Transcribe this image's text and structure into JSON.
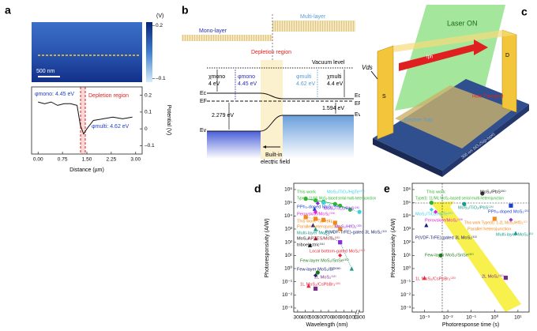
{
  "panels": {
    "a": {
      "letter": "a",
      "colorbar_unit": "(V)",
      "colorbar_lim": [
        -0.12,
        0.22
      ],
      "colorbar_ticks": [
        0.2,
        {
          "value": -0.1,
          "label": "–0.1"
        }
      ],
      "scale_bar": "500 nm",
      "phi_mono": "φmono: 4.45 eV",
      "phi_multi": "φmulti: 4.62 eV",
      "depletion": "Depletion region",
      "xlabel": "Distance (µm)",
      "ylabel": "Potential (V)",
      "xlim": [
        -0.2,
        3.2
      ],
      "xticks": [
        {
          "value": 0,
          "label": "0.00"
        },
        {
          "value": 0.75,
          "label": "0.75"
        },
        {
          "value": 1.5,
          "label": "1.50"
        },
        {
          "value": 2.25,
          "label": "2.25"
        },
        {
          "value": 3,
          "label": "3.00"
        }
      ],
      "ylim": [
        -0.15,
        0.25
      ],
      "yticks": [
        0.2,
        0.1,
        0,
        {
          "value": -0.1,
          "label": "–0.1"
        }
      ],
      "profile": {
        "color": "#111111",
        "x": [
          0,
          0.2,
          0.4,
          0.6,
          0.8,
          1.0,
          1.2,
          1.3,
          1.4,
          1.5,
          1.7,
          2.0,
          2.3,
          2.6,
          2.9
        ],
        "values": [
          0.16,
          0.15,
          0.16,
          0.14,
          0.15,
          0.15,
          0.14,
          0.02,
          -0.03,
          0.0,
          0.05,
          0.06,
          0.07,
          0.06,
          0.07
        ]
      }
    },
    "b": {
      "letter": "b",
      "multi": "Multi-layer",
      "mono": "Mono-layer",
      "depletion": "Depletion region",
      "vacuum": "Vacuum level",
      "chi_mono_sym": "χmono",
      "chi_mono": "4 eV",
      "phi_mono_sym": "φmono",
      "phi_mono": "4.45 eV",
      "phi_multi_sym": "φmulti",
      "phi_multi": "4.62 eV",
      "chi_multi_sym": "χmulti",
      "chi_multi": "4.4 eV",
      "ec_left": "Ec",
      "ef_left": "EF",
      "ev_left": "Ev",
      "ec_right": "Ec",
      "ef_right": "EF",
      "ev_right": "Ev",
      "gap_mono": "2.279 eV",
      "gap_multi": "1.594 eV",
      "builtin1": "Built-in",
      "builtin2": "electric field"
    },
    "c": {
      "letter": "c",
      "laser": "Laser ON",
      "vds": "Vds",
      "source": "S",
      "drain": "D",
      "iph": "Iph",
      "substrate": "300 nm SiO₂/Si(p-type)",
      "hole": "Hole Transport",
      "electron": "Electron Trap"
    },
    "d": {
      "letter": "d",
      "xlabel": "Wavelength (nm)",
      "ylabel": "Photoresponsivity (A/W)",
      "xlim": [
        250,
        1350
      ],
      "axis_break": [
        1050,
        1250
      ],
      "xticks": [
        300,
        400,
        500,
        600,
        700,
        800,
        900,
        1000,
        1300
      ],
      "log_y": true,
      "ylim": [
        0.0005,
        3000000
      ],
      "yticks": [
        {
          "value": 1000000,
          "label": "10⁶"
        },
        {
          "value": 100000,
          "label": "10⁵"
        },
        {
          "value": 10000,
          "label": "10⁴"
        },
        {
          "value": 1000,
          "label": "10³"
        },
        {
          "value": 100,
          "label": "10²"
        },
        {
          "value": 10,
          "label": "10¹"
        },
        {
          "value": 1,
          "label": "10⁰"
        },
        {
          "value": 0.1,
          "label": "10⁻¹"
        },
        {
          "value": 0.01,
          "label": "10⁻²"
        },
        {
          "value": 0.001,
          "label": "10⁻³"
        }
      ],
      "series": [
        {
          "color": "#2fb52f",
          "shape": "circle",
          "line": "solid",
          "x": [
            405,
            532,
            635,
            785,
            850,
            980
          ],
          "values": [
            200000,
            150000,
            120000,
            80000,
            60000,
            30000
          ]
        },
        {
          "color": "#3ad0e8",
          "shape": "circle",
          "line": "dotted",
          "x": [
            635,
            1300
          ],
          "values": [
            100000,
            20000
          ]
        },
        {
          "color": "#1f3fd0",
          "shape": "triangle",
          "x": [
            520
          ],
          "values": [
            35000
          ]
        },
        {
          "color": "#8a2be2",
          "shape": "diamond",
          "x": [
            560
          ],
          "values": [
            90000
          ]
        },
        {
          "color": "#e020d0",
          "shape": "diamond",
          "x": [
            532
          ],
          "values": [
            20000
          ]
        },
        {
          "color": "#f08a1c",
          "shape": "square",
          "line": "dotted",
          "x": [
            405,
            532,
            635,
            785,
            850
          ],
          "values": [
            8000,
            6000,
            5000,
            3000,
            1000
          ]
        },
        {
          "color": "#1a9a8a",
          "shape": "triangle",
          "line": "dotted",
          "x": [
            532,
            850,
            1000
          ],
          "values": [
            1000,
            100,
            1
          ]
        },
        {
          "color": "#16206e",
          "shape": "triangle",
          "x": [
            500
          ],
          "values": [
            2000
          ]
        },
        {
          "color": "#111111",
          "shape": "triangle",
          "x": [
            460
          ],
          "values": [
            60
          ]
        },
        {
          "color": "#e8283c",
          "shape": "diamond",
          "x": [
            850
          ],
          "values": [
            10
          ]
        },
        {
          "color": "#1f7a1f",
          "shape": "circle",
          "x": [
            560
          ],
          "values": [
            0.5
          ]
        },
        {
          "color": "#16206e",
          "shape": "diamond",
          "x": [
            532
          ],
          "values": [
            0.3
          ]
        },
        {
          "color": "#7a2a8a",
          "shape": "square",
          "x": [
            532
          ],
          "values": [
            0.03
          ]
        },
        {
          "color": "#e8283c",
          "shape": "triangle",
          "x": [
            442
          ],
          "values": [
            0.05
          ]
        },
        {
          "color": "#9a1a2a",
          "shape": "triangle",
          "x": [
            532
          ],
          "values": [
            200
          ]
        },
        {
          "color": "#8a2be2",
          "shape": "square",
          "x": [
            850
          ],
          "values": [
            100
          ]
        }
      ],
      "annotations": [
        {
          "text": "This work",
          "color": "#2fb52f"
        },
        {
          "text": "Type(I): 1L/ML MoS₂-based serial multi-heterojunction",
          "color": "#2fb52f"
        },
        {
          "text": "MoS₂/TiO₂/HgTe⁽²⁵⁾",
          "color": "#3ad0e8"
        },
        {
          "text": "PPh₃-doped MoS₂⁽²¹⁾",
          "color": "#1f3fd0"
        },
        {
          "text": "MoS₂/TiO₂/PbS⁽²⁶⁾",
          "color": "#8a2be2"
        },
        {
          "text": "Perovskite/MoS₂⁽¹⁸⁾",
          "color": "#e020d0"
        },
        {
          "text": "This work Type(II):",
          "color": "#f08a1c"
        },
        {
          "text": "Parallel heterojunction",
          "color": "#f08a1c"
        },
        {
          "text": "Multi-layer MoS₂⁽²¹⁾",
          "color": "#1a9a8a"
        },
        {
          "text": "P(VDF-TrFE)-gated 3L MoS₂⁽¹³⁾",
          "color": "#16206e"
        },
        {
          "text": "MoS₂/HfO₂⁽³⁰⁾",
          "color": "#8a2be2"
        },
        {
          "text": "APTES/MoS₂⁽¹⁵⁾",
          "color": "#9a1a2a"
        },
        {
          "text": "MoS₂/",
          "color": "#111111"
        },
        {
          "text": "triboelectric⁽¹¹⁾",
          "color": "#111111"
        },
        {
          "text": "Local bottom-gated MoS₂⁽¹⁹⁾",
          "color": "#e8283c"
        },
        {
          "text": "Few-layer MoS₂/SnSe⁽³⁰⁾",
          "color": "#1f7a1f"
        },
        {
          "text": "Few-layer MoS₂/BP⁽³⁸⁾",
          "color": "#16206e"
        },
        {
          "text": "2L MoS₂⁽¹²⁾",
          "color": "#7a2a8a"
        },
        {
          "text": "1L MoS₂/CsPbBr₃⁽²³⁾",
          "color": "#e8283c"
        }
      ]
    },
    "e": {
      "letter": "e",
      "xlabel": "Photoresponse time (s)",
      "ylabel": "Photoresponsivity (A/W)",
      "log_x": true,
      "xlim": [
        0.0003,
        30
      ],
      "xticks": [
        {
          "value": 0.001,
          "label": "10⁻³"
        },
        {
          "value": 0.01,
          "label": "10⁻²"
        },
        {
          "value": 0.1,
          "label": "10⁻¹"
        },
        {
          "value": 1,
          "label": "10⁰"
        },
        {
          "value": 10,
          "label": "10¹"
        }
      ],
      "log_y": true,
      "ylim": [
        0.0005,
        3000000
      ],
      "yticks": [
        {
          "value": 1000000,
          "label": "10⁶"
        },
        {
          "value": 100000,
          "label": "10⁵"
        },
        {
          "value": 10000,
          "label": "10⁴"
        },
        {
          "value": 1000,
          "label": "10³"
        },
        {
          "value": 100,
          "label": "10²"
        },
        {
          "value": 10,
          "label": "10¹"
        },
        {
          "value": 1,
          "label": "10⁰"
        },
        {
          "value": 0.1,
          "label": "10⁻¹"
        },
        {
          "value": 0.01,
          "label": "10⁻²"
        },
        {
          "value": 0.001,
          "label": "10⁻³"
        }
      ],
      "series": [
        {
          "color": "#2fb52f",
          "shape": "circle",
          "x": [
            0.002
          ],
          "values": [
            100000
          ]
        },
        {
          "color": "#333333",
          "shape": "circle",
          "x": [
            0.3
          ],
          "values": [
            500000
          ]
        },
        {
          "color": "#1a9a8a",
          "shape": "circle",
          "x": [
            0.05
          ],
          "values": [
            80000
          ]
        },
        {
          "color": "#1f3fd0",
          "shape": "square",
          "x": [
            5
          ],
          "values": [
            60000
          ]
        },
        {
          "color": "#3ad0e8",
          "shape": "diamond",
          "x": [
            0.002
          ],
          "values": [
            30000
          ]
        },
        {
          "color": "#e020d0",
          "shape": "diamond",
          "x": [
            0.003
          ],
          "values": [
            20000
          ]
        },
        {
          "color": "#f08a1c",
          "shape": "square",
          "x": [
            1
          ],
          "values": [
            6000
          ]
        },
        {
          "color": "#8a2be2",
          "shape": "diamond",
          "x": [
            5
          ],
          "values": [
            5000
          ]
        },
        {
          "color": "#16206e",
          "shape": "triangle",
          "x": [
            0.0012
          ],
          "values": [
            2000
          ]
        },
        {
          "color": "#1a9a8a",
          "shape": "triangle",
          "x": [
            8
          ],
          "values": [
            500
          ]
        },
        {
          "color": "#1f7a1f",
          "shape": "circle",
          "x": [
            0.005
          ],
          "values": [
            10
          ]
        },
        {
          "color": "#e8283c",
          "shape": "triangle",
          "x": [
            0.001
          ],
          "values": [
            0.2
          ]
        },
        {
          "color": "#7a2a8a",
          "shape": "square",
          "x": [
            3
          ],
          "values": [
            0.2
          ]
        }
      ],
      "annotations": [
        {
          "text": "This work",
          "color": "#2fb52f"
        },
        {
          "text": "Type(I): 1L/ML MoS₂-based serial multi-heterojunction",
          "color": "#2fb52f"
        },
        {
          "text": "MoS₂/PbS⁽²⁶⁾",
          "color": "#111111"
        },
        {
          "text": "MoS₂/TiO₂/PbS⁽²⁶⁾",
          "color": "#1a9a8a"
        },
        {
          "text": "PPh₃-doped MoS₂⁽²¹⁾",
          "color": "#1f3fd0"
        },
        {
          "text": "MoS₂/TiO₂/HgTe⁽²⁵⁾",
          "color": "#3ad0e8"
        },
        {
          "text": "Perovskite/MoS₂⁽¹⁸⁾",
          "color": "#e020d0"
        },
        {
          "text": "This work Type(II): 1-2L MoS₂/HfO₂⁽¹⁷⁾",
          "color": "#f08a1c"
        },
        {
          "text": "Parallel heterojunction",
          "color": "#f08a1c"
        },
        {
          "text": "P(VDF-TrFE)-gated 3L MoS₂⁽¹³⁾",
          "color": "#16206e"
        },
        {
          "text": "Multi-layer MoS₂⁽²¹⁾",
          "color": "#1a9a8a"
        },
        {
          "text": "Few-layer MoS₂/SnSe⁽³⁰⁾",
          "color": "#1f7a1f"
        },
        {
          "text": "1L MoS₂/CsPbBr₃⁽²³⁾",
          "color": "#e8283c"
        },
        {
          "text": "2L MoS₂⁽¹²⁾",
          "color": "#7a2a8a"
        }
      ]
    }
  }
}
